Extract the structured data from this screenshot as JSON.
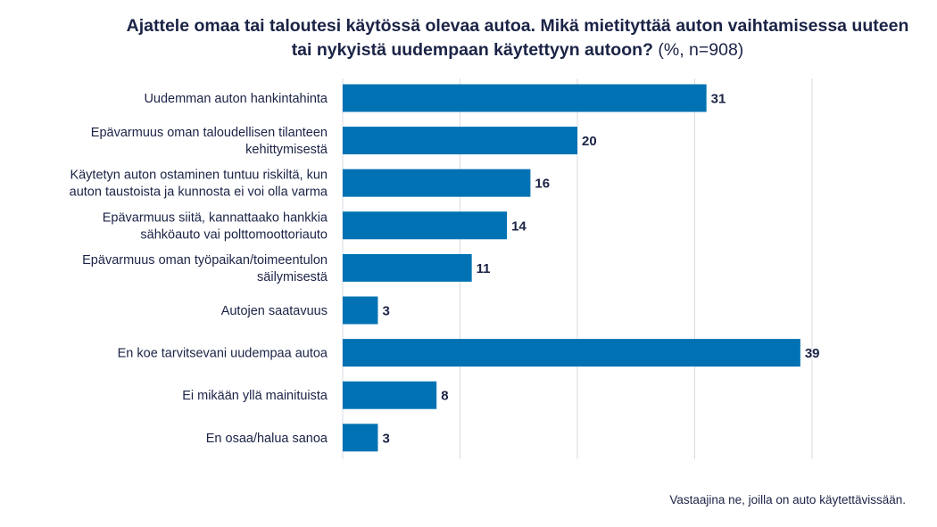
{
  "title_bold": "Ajattele omaa tai taloutesi käytössä olevaa autoa. Mikä mietityttää auton vaihtamisessa uuteen tai nykyistä uudempaan käytettyyn autoon?",
  "title_light": "(%, n=908)",
  "footnote": "Vastaajina ne, joilla on auto käytettävissään.",
  "colors": {
    "bar": "#0072b3",
    "grid": "#d9dbe3",
    "text": "#1b2346"
  },
  "chart_data": {
    "type": "bar",
    "orientation": "horizontal",
    "title": "Ajattele omaa tai taloutesi käytössä olevaa autoa. Mikä mietityttää auton vaihtamisessa uuteen tai nykyistä uudempaan käytettyyn autoon? (%, n=908)",
    "categories": [
      [
        "Uudemman auton hankintahinta"
      ],
      [
        "Epävarmuus oman taloudellisen tilanteen",
        "kehittymisestä"
      ],
      [
        "Käytetyn auton ostaminen tuntuu riskiltä, kun",
        "auton taustoista ja kunnosta ei voi olla varma"
      ],
      [
        "Epävarmuus siitä, kannattaako hankkia",
        "sähköauto vai polttomoottoriauto"
      ],
      [
        "Epävarmuus oman työpaikan/toimeentulon",
        "säilymisestä"
      ],
      [
        "Autojen saatavuus"
      ],
      [
        "En koe tarvitsevani uudempaa autoa"
      ],
      [
        "Ei mikään yllä mainituista"
      ],
      [
        "En osaa/halua sanoa"
      ]
    ],
    "values": [
      31,
      20,
      16,
      14,
      11,
      3,
      39,
      8,
      3
    ],
    "xlim": [
      0,
      40
    ],
    "gridlines": [
      0,
      10,
      20,
      30,
      40
    ],
    "xlabel": "",
    "ylabel": ""
  }
}
